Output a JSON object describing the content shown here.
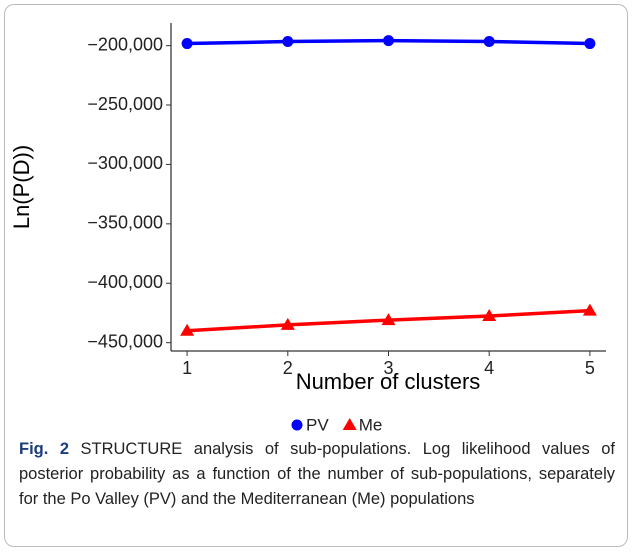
{
  "chart_data": {
    "type": "line",
    "x": [
      1,
      2,
      3,
      4,
      5
    ],
    "series": [
      {
        "name": "PV",
        "color": "#0000ff",
        "marker": "circle",
        "values": [
          -198300,
          -196600,
          -195800,
          -196600,
          -198300
        ]
      },
      {
        "name": "Me",
        "color": "#ff0000",
        "marker": "triangle",
        "values": [
          -440000,
          -435000,
          -431000,
          -427600,
          -423000
        ]
      }
    ],
    "xlabel": "Number of clusters",
    "ylabel": "Ln(P(D))",
    "xlim": [
      0.84,
      5.16
    ],
    "xticks": [
      1,
      2,
      3,
      4,
      5
    ],
    "ylim": [
      -457000,
      -181000
    ],
    "yticks": [
      {
        "value": -450000,
        "label": "−450,000"
      },
      {
        "value": -400000,
        "label": "−400,000"
      },
      {
        "value": -350000,
        "label": "−350,000"
      },
      {
        "value": -300000,
        "label": "−300,000"
      },
      {
        "value": -250000,
        "label": "−250,000"
      },
      {
        "value": -200000,
        "label": "−200,000"
      }
    ],
    "grid": false,
    "legend": "bottom"
  },
  "caption": {
    "label": "Fig. 2",
    "text": "STRUCTURE analysis of sub-populations. Log likelihood values of posterior probability as a function of the number of sub-populations, separately for the Po Valley (PV) and the Mediterranean (Me) populations"
  }
}
